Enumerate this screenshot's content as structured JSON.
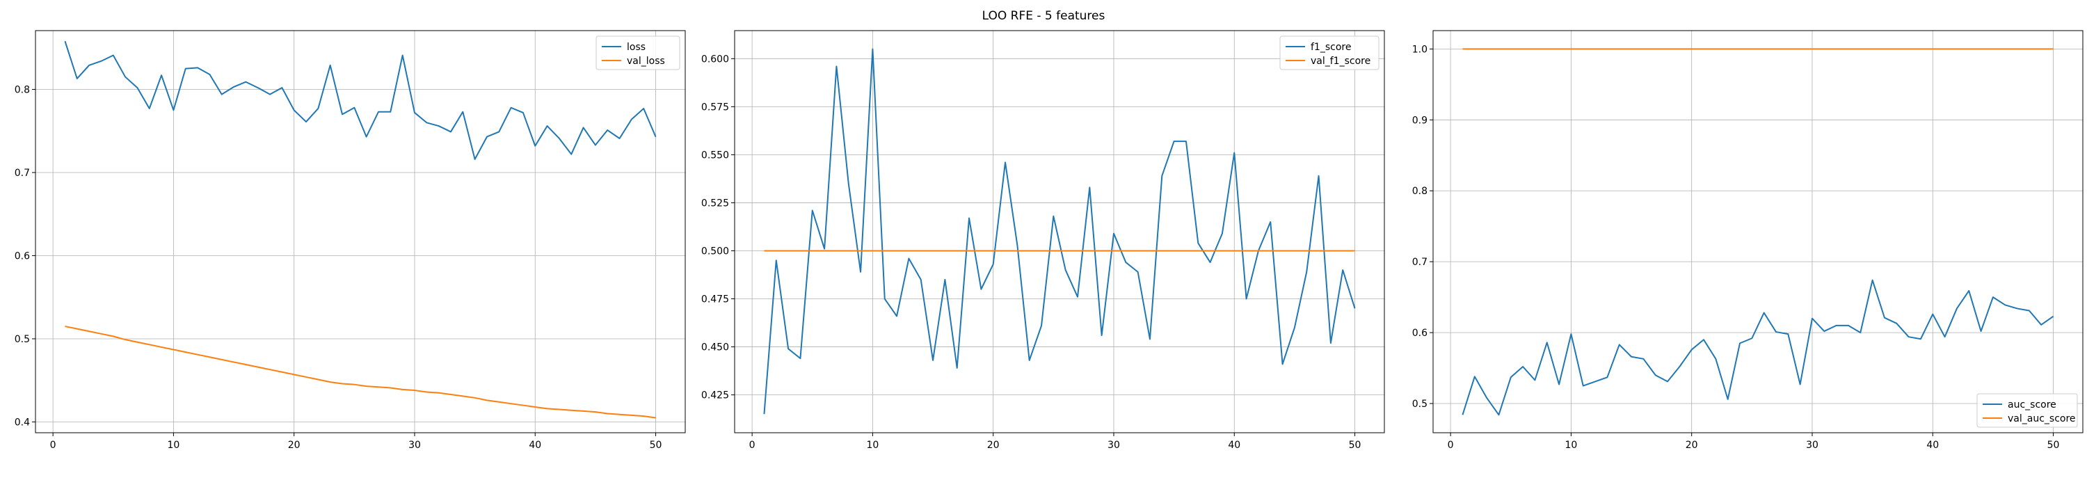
{
  "figure": {
    "title": "LOO RFE - 5 features"
  },
  "chart_data": [
    {
      "type": "line",
      "title": "",
      "xlabel": "",
      "ylabel": "",
      "grid": true,
      "legend_position": "top-right",
      "xlim": [
        -1.45,
        52.45
      ],
      "ylim": [
        0.387,
        0.8707
      ],
      "x_ticks": [
        0,
        10,
        20,
        30,
        40,
        50
      ],
      "y_ticks": [
        0.4,
        0.5,
        0.6,
        0.7,
        0.8
      ],
      "y_tick_labels": [
        "0.4",
        "0.5",
        "0.6",
        "0.7",
        "0.8"
      ],
      "x": [
        1,
        2,
        3,
        4,
        5,
        6,
        7,
        8,
        9,
        10,
        11,
        12,
        13,
        14,
        15,
        16,
        17,
        18,
        19,
        20,
        21,
        22,
        23,
        24,
        25,
        26,
        27,
        28,
        29,
        30,
        31,
        32,
        33,
        34,
        35,
        36,
        37,
        38,
        39,
        40,
        41,
        42,
        43,
        44,
        45,
        46,
        47,
        48,
        49,
        50
      ],
      "series": [
        {
          "name": "loss",
          "color": "#1f77b4",
          "values": [
            0.858,
            0.813,
            0.829,
            0.834,
            0.841,
            0.815,
            0.802,
            0.777,
            0.817,
            0.775,
            0.825,
            0.826,
            0.818,
            0.794,
            0.803,
            0.809,
            0.802,
            0.794,
            0.802,
            0.775,
            0.761,
            0.777,
            0.829,
            0.77,
            0.778,
            0.743,
            0.773,
            0.773,
            0.841,
            0.772,
            0.76,
            0.756,
            0.749,
            0.773,
            0.716,
            0.743,
            0.749,
            0.778,
            0.772,
            0.732,
            0.756,
            0.741,
            0.722,
            0.754,
            0.733,
            0.751,
            0.741,
            0.764,
            0.777,
            0.743
          ]
        },
        {
          "name": "val_loss",
          "color": "#ff7f0e",
          "values": [
            0.515,
            0.512,
            0.509,
            0.506,
            0.503,
            0.499,
            0.496,
            0.493,
            0.49,
            0.487,
            0.484,
            0.481,
            0.478,
            0.475,
            0.472,
            0.469,
            0.466,
            0.463,
            0.46,
            0.457,
            0.454,
            0.451,
            0.448,
            0.446,
            0.445,
            0.443,
            0.442,
            0.441,
            0.439,
            0.438,
            0.436,
            0.435,
            0.433,
            0.431,
            0.429,
            0.426,
            0.424,
            0.422,
            0.42,
            0.418,
            0.416,
            0.415,
            0.414,
            0.413,
            0.412,
            0.41,
            0.409,
            0.408,
            0.407,
            0.405
          ]
        }
      ]
    },
    {
      "type": "line",
      "title": "",
      "xlabel": "",
      "ylabel": "",
      "grid": true,
      "legend_position": "top-right",
      "xlim": [
        -1.45,
        52.45
      ],
      "ylim": [
        0.4053,
        0.6146
      ],
      "x_ticks": [
        0,
        10,
        20,
        30,
        40,
        50
      ],
      "y_ticks": [
        0.425,
        0.45,
        0.475,
        0.5,
        0.525,
        0.55,
        0.575,
        0.6
      ],
      "y_tick_labels": [
        "0.425",
        "0.450",
        "0.475",
        "0.500",
        "0.525",
        "0.550",
        "0.575",
        "0.600"
      ],
      "x": [
        1,
        2,
        3,
        4,
        5,
        6,
        7,
        8,
        9,
        10,
        11,
        12,
        13,
        14,
        15,
        16,
        17,
        18,
        19,
        20,
        21,
        22,
        23,
        24,
        25,
        26,
        27,
        28,
        29,
        30,
        31,
        32,
        33,
        34,
        35,
        36,
        37,
        38,
        39,
        40,
        41,
        42,
        43,
        44,
        45,
        46,
        47,
        48,
        49,
        50
      ],
      "series": [
        {
          "name": "f1_score",
          "color": "#1f77b4",
          "values": [
            0.415,
            0.495,
            0.449,
            0.444,
            0.521,
            0.501,
            0.596,
            0.535,
            0.489,
            0.605,
            0.475,
            0.466,
            0.496,
            0.485,
            0.443,
            0.485,
            0.439,
            0.517,
            0.48,
            0.493,
            0.546,
            0.503,
            0.443,
            0.461,
            0.518,
            0.49,
            0.476,
            0.533,
            0.456,
            0.509,
            0.494,
            0.489,
            0.454,
            0.539,
            0.557,
            0.557,
            0.504,
            0.494,
            0.509,
            0.551,
            0.475,
            0.5,
            0.515,
            0.441,
            0.46,
            0.489,
            0.539,
            0.452,
            0.49,
            0.47
          ]
        },
        {
          "name": "val_f1_score",
          "color": "#ff7f0e",
          "values": [
            0.5,
            0.5,
            0.5,
            0.5,
            0.5,
            0.5,
            0.5,
            0.5,
            0.5,
            0.5,
            0.5,
            0.5,
            0.5,
            0.5,
            0.5,
            0.5,
            0.5,
            0.5,
            0.5,
            0.5,
            0.5,
            0.5,
            0.5,
            0.5,
            0.5,
            0.5,
            0.5,
            0.5,
            0.5,
            0.5,
            0.5,
            0.5,
            0.5,
            0.5,
            0.5,
            0.5,
            0.5,
            0.5,
            0.5,
            0.5,
            0.5,
            0.5,
            0.5,
            0.5,
            0.5,
            0.5,
            0.5,
            0.5,
            0.5,
            0.5
          ]
        }
      ]
    },
    {
      "type": "line",
      "title": "",
      "xlabel": "",
      "ylabel": "",
      "grid": true,
      "legend_position": "bottom-right",
      "xlim": [
        -1.45,
        52.45
      ],
      "ylim": [
        0.4588,
        1.0259
      ],
      "x_ticks": [
        0,
        10,
        20,
        30,
        40,
        50
      ],
      "y_ticks": [
        0.5,
        0.6,
        0.7,
        0.8,
        0.9,
        1.0
      ],
      "y_tick_labels": [
        "0.5",
        "0.6",
        "0.7",
        "0.8",
        "0.9",
        "1.0"
      ],
      "x": [
        1,
        2,
        3,
        4,
        5,
        6,
        7,
        8,
        9,
        10,
        11,
        12,
        13,
        14,
        15,
        16,
        17,
        18,
        19,
        20,
        21,
        22,
        23,
        24,
        25,
        26,
        27,
        28,
        29,
        30,
        31,
        32,
        33,
        34,
        35,
        36,
        37,
        38,
        39,
        40,
        41,
        42,
        43,
        44,
        45,
        46,
        47,
        48,
        49,
        50
      ],
      "series": [
        {
          "name": "auc_score",
          "color": "#1f77b4",
          "values": [
            0.484,
            0.538,
            0.508,
            0.484,
            0.537,
            0.552,
            0.533,
            0.586,
            0.527,
            0.598,
            0.525,
            0.531,
            0.537,
            0.583,
            0.566,
            0.563,
            0.54,
            0.531,
            0.552,
            0.576,
            0.59,
            0.563,
            0.506,
            0.585,
            0.592,
            0.628,
            0.601,
            0.598,
            0.527,
            0.62,
            0.602,
            0.61,
            0.61,
            0.6,
            0.674,
            0.621,
            0.613,
            0.594,
            0.591,
            0.626,
            0.594,
            0.634,
            0.659,
            0.602,
            0.65,
            0.639,
            0.634,
            0.631,
            0.611,
            0.623
          ]
        },
        {
          "name": "val_auc_score",
          "color": "#ff7f0e",
          "values": [
            1.0,
            1.0,
            1.0,
            1.0,
            1.0,
            1.0,
            1.0,
            1.0,
            1.0,
            1.0,
            1.0,
            1.0,
            1.0,
            1.0,
            1.0,
            1.0,
            1.0,
            1.0,
            1.0,
            1.0,
            1.0,
            1.0,
            1.0,
            1.0,
            1.0,
            1.0,
            1.0,
            1.0,
            1.0,
            1.0,
            1.0,
            1.0,
            1.0,
            1.0,
            1.0,
            1.0,
            1.0,
            1.0,
            1.0,
            1.0,
            1.0,
            1.0,
            1.0,
            1.0,
            1.0,
            1.0,
            1.0,
            1.0,
            1.0,
            1.0
          ]
        }
      ]
    }
  ]
}
